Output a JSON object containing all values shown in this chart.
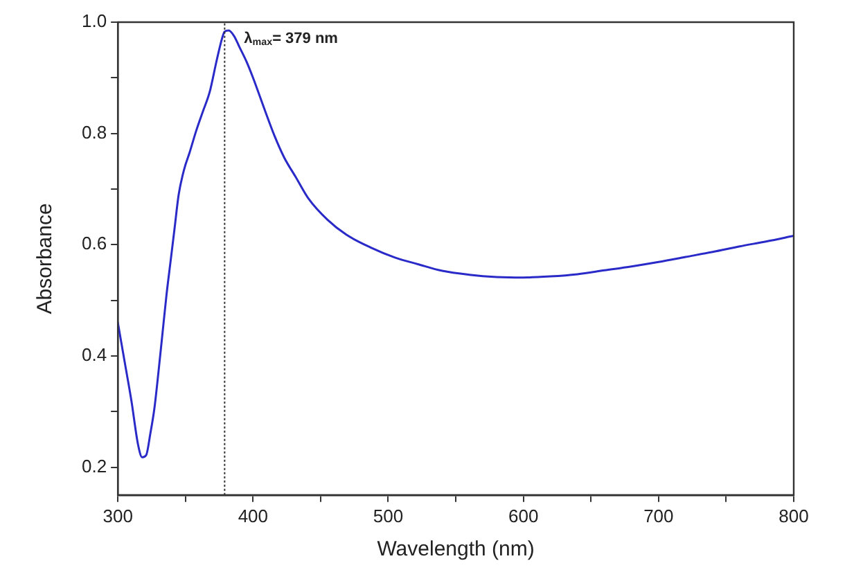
{
  "chart_data": {
    "type": "line",
    "xlabel": "Wavelength (nm)",
    "ylabel": "Absorbance",
    "x": [
      300,
      305,
      310,
      315,
      318,
      321,
      324,
      327,
      330,
      333,
      336,
      339,
      342,
      345,
      349,
      353,
      358,
      363,
      368,
      373,
      377,
      379,
      382,
      386,
      390,
      395,
      400,
      409,
      416,
      423,
      432,
      441,
      455,
      469,
      487,
      505,
      522,
      540,
      560,
      580,
      600,
      620,
      640,
      660,
      680,
      700,
      720,
      740,
      760,
      780,
      800
    ],
    "series": [
      {
        "color": "#2a2ac8",
        "values": [
          0.46,
          0.39,
          0.32,
          0.24,
          0.218,
          0.222,
          0.26,
          0.305,
          0.37,
          0.44,
          0.51,
          0.57,
          0.63,
          0.69,
          0.735,
          0.765,
          0.805,
          0.84,
          0.875,
          0.93,
          0.97,
          0.983,
          0.985,
          0.975,
          0.955,
          0.93,
          0.9,
          0.84,
          0.795,
          0.757,
          0.72,
          0.683,
          0.645,
          0.618,
          0.595,
          0.577,
          0.565,
          0.553,
          0.546,
          0.542,
          0.541,
          0.543,
          0.547,
          0.554,
          0.561,
          0.569,
          0.578,
          0.587,
          0.597,
          0.606,
          0.616
        ]
      }
    ],
    "xlim": [
      300,
      800
    ],
    "xticks": [
      300,
      {
        "value": 350,
        "label": null
      },
      400,
      {
        "value": 450,
        "label": null
      },
      500,
      {
        "value": 550,
        "label": null
      },
      600,
      {
        "value": 650,
        "label": null
      },
      700,
      {
        "value": 750,
        "label": null
      },
      800
    ],
    "ylim": [
      0.15,
      1.0
    ],
    "yticks": [
      {
        "value": 0.2,
        "label": "0.2"
      },
      {
        "value": 0.3,
        "label": null
      },
      {
        "value": 0.4,
        "label": "0.4"
      },
      {
        "value": 0.5,
        "label": null
      },
      {
        "value": 0.6,
        "label": "0.6"
      },
      {
        "value": 0.7,
        "label": null
      },
      {
        "value": 0.8,
        "label": "0.8"
      },
      {
        "value": 0.9,
        "label": null
      },
      {
        "value": 1.0,
        "label": "1.0"
      }
    ],
    "ref_lines": [
      {
        "axis": "x",
        "value": 379,
        "label": "λ$_{max}$= 379 nm",
        "line_style": "dotted",
        "color": "#333333"
      }
    ],
    "grid": false,
    "legend": false,
    "marker": "none",
    "line_style": "solid"
  }
}
